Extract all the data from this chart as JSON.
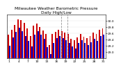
{
  "title": "Milwaukee Weather Barometric Pressure\nDaily High/Low",
  "high_values": [
    29.55,
    29.72,
    29.88,
    30.05,
    30.02,
    29.95,
    29.75,
    29.52,
    29.85,
    29.92,
    29.8,
    29.7,
    29.58,
    29.22,
    29.58,
    29.65,
    29.72,
    29.68,
    29.62,
    29.58,
    29.42,
    29.38,
    29.48,
    29.58,
    29.5,
    29.45,
    29.52,
    29.62,
    29.58,
    29.72,
    29.75
  ],
  "low_values": [
    29.2,
    29.48,
    29.65,
    29.78,
    29.68,
    29.52,
    29.35,
    29.18,
    29.55,
    29.68,
    29.55,
    29.42,
    29.15,
    28.92,
    29.3,
    29.45,
    29.52,
    29.45,
    29.38,
    29.3,
    29.18,
    29.12,
    29.28,
    29.38,
    29.28,
    29.22,
    29.32,
    29.42,
    29.35,
    29.52,
    29.55
  ],
  "high_color": "#cc0000",
  "low_color": "#0000cc",
  "bg_color": "#ffffff",
  "plot_bg": "#ffffff",
  "ylim_min": 28.8,
  "ylim_max": 30.2,
  "ytick_values": [
    29.0,
    29.2,
    29.4,
    29.6,
    29.8,
    30.0
  ],
  "ytick_labels": [
    "29.0",
    "29.2",
    "29.4",
    "29.6",
    "29.8",
    "30.0"
  ],
  "vline_positions": [
    17.5,
    19.5
  ],
  "title_fontsize": 4.2,
  "tick_fontsize": 3.2,
  "bar_width": 0.42,
  "days": 31,
  "xtick_positions": [
    1,
    4,
    7,
    10,
    13,
    16,
    19,
    22,
    25,
    28,
    31
  ],
  "xtick_labels": [
    "1",
    "4",
    "7",
    "10",
    "13",
    "16",
    "19",
    "22",
    "25",
    "28",
    "31"
  ]
}
